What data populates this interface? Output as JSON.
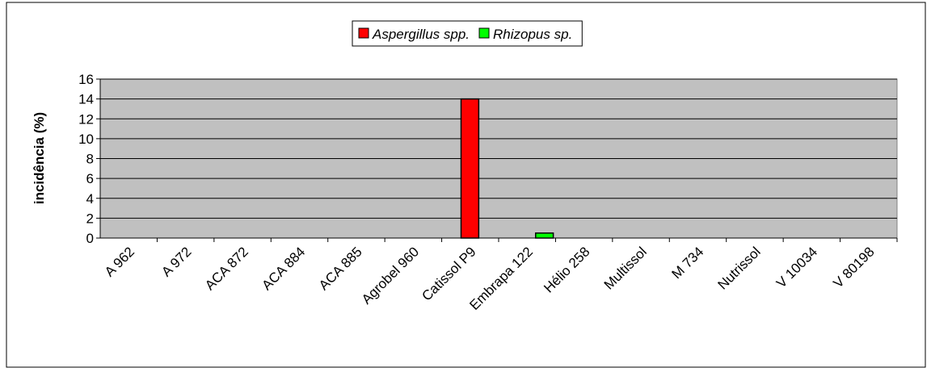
{
  "chart_data": {
    "type": "bar",
    "y_label": "incidência (%)",
    "categories": [
      "A 962",
      "A 972",
      "ACA 872",
      "ACA 884",
      "ACA 885",
      "Agrobel 960",
      "Catissol P9",
      "Embrapa 122",
      "Hélio 258",
      "Multissol",
      "M 734",
      "Nutrissol",
      "V 10034",
      "V 80198"
    ],
    "series": [
      {
        "name": "Aspergillus spp.",
        "color": "#ff0000",
        "values": [
          0,
          0,
          0,
          0,
          0,
          0,
          14,
          0,
          0,
          0,
          0,
          0,
          0,
          0
        ]
      },
      {
        "name": "Rhizopus sp.",
        "color": "#00ff00",
        "values": [
          0,
          0,
          0,
          0,
          0,
          0,
          0,
          0.5,
          0,
          0,
          0,
          0,
          0,
          0
        ]
      }
    ],
    "ylim": [
      0,
      16
    ],
    "yticks": [
      0,
      2,
      4,
      6,
      8,
      10,
      12,
      14,
      16
    ],
    "grid": true,
    "legend": "top"
  }
}
